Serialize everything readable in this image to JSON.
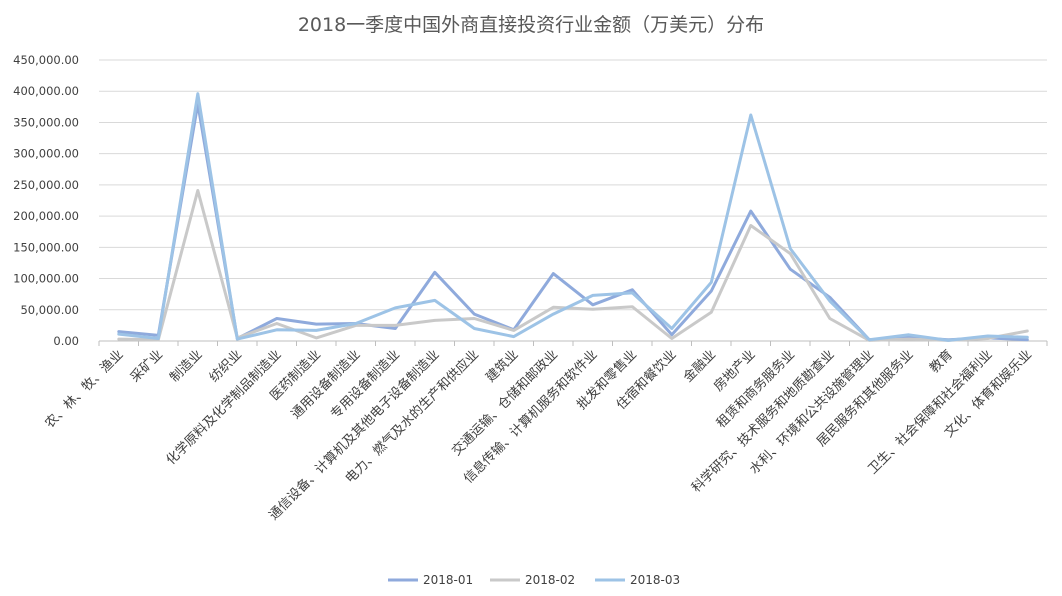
{
  "chart_data": {
    "type": "line",
    "title": "2018一季度中国外商直接投资行业金额（万美元）分布",
    "xlabel": "",
    "ylabel": "",
    "ylim": [
      0,
      450000
    ],
    "yticks": [
      0,
      50000,
      100000,
      150000,
      200000,
      250000,
      300000,
      350000,
      400000,
      450000
    ],
    "ytick_labels": [
      "0.00",
      "50,000.00",
      "100,000.00",
      "150,000.00",
      "200,000.00",
      "250,000.00",
      "300,000.00",
      "350,000.00",
      "400,000.00",
      "450,000.00"
    ],
    "grid": true,
    "legend_position": "bottom",
    "categories": [
      "农、林、牧、渔业",
      "采矿业",
      "制造业",
      "纺织业",
      "化学原料及化学制品制造业",
      "医药制造业",
      "通用设备制造业",
      "专用设备制造业",
      "通信设备、计算机及其他电子设备制造业",
      "电力、燃气及水的生产和供应业",
      "建筑业",
      "交通运输、仓储和邮政业",
      "信息传输、计算机服务和软件业",
      "批发和零售业",
      "住宿和餐饮业",
      "金融业",
      "房地产业",
      "租赁和商务服务业",
      "科学研究、技术服务和地质勘查业",
      "水利、环境和公共设施管理业",
      "居民服务和其他服务业",
      "教育",
      "卫生、社会保障和社会福利业",
      "文化、体育和娱乐业"
    ],
    "series": [
      {
        "name": "2018-01",
        "color": "#8faadc",
        "values": [
          15000,
          9000,
          380000,
          4000,
          36000,
          27000,
          28000,
          20000,
          110000,
          43000,
          18000,
          108000,
          58000,
          82000,
          10000,
          80000,
          208000,
          115000,
          70000,
          2000,
          6000,
          2000,
          5000,
          2000
        ]
      },
      {
        "name": "2018-02",
        "color": "#c9c9c9",
        "values": [
          3000,
          2000,
          241000,
          5000,
          28000,
          5000,
          25000,
          25000,
          33000,
          36000,
          17000,
          54000,
          51000,
          55000,
          4000,
          46000,
          185000,
          140000,
          36000,
          1000,
          3000,
          1000,
          4000,
          16000
        ]
      },
      {
        "name": "2018-03",
        "color": "#9dc3e6",
        "values": [
          11000,
          4000,
          396000,
          3000,
          18000,
          17000,
          28000,
          53000,
          65000,
          20000,
          7000,
          43000,
          73000,
          77000,
          20000,
          94000,
          362000,
          148000,
          64000,
          2000,
          10000,
          1000,
          8000,
          6000
        ]
      }
    ]
  }
}
